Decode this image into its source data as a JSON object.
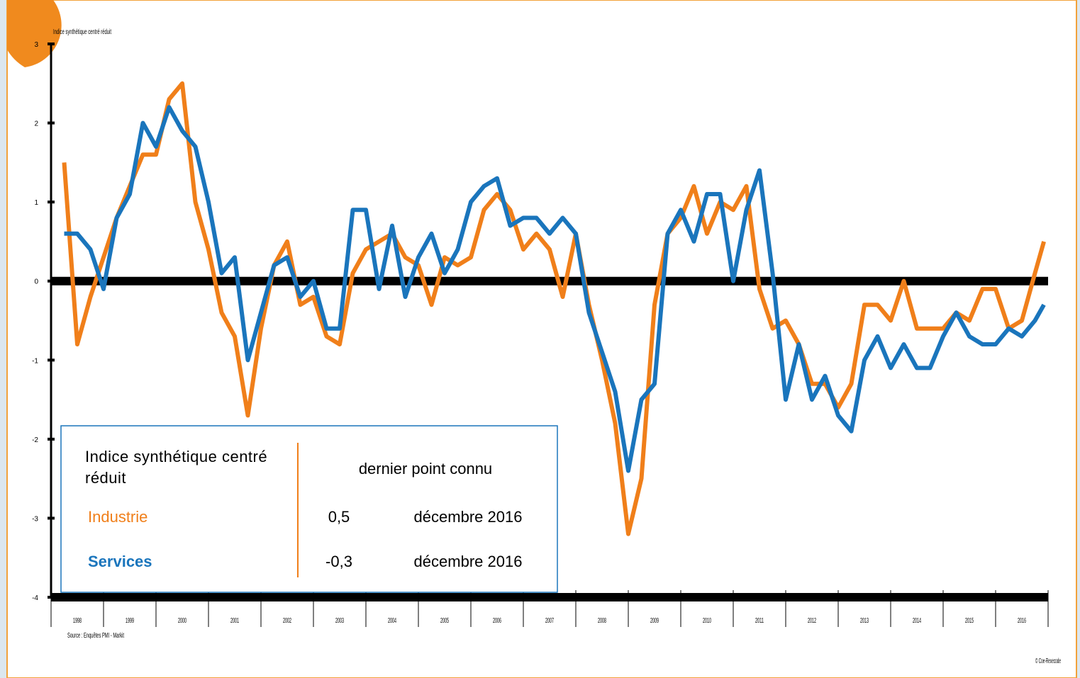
{
  "chart_data": {
    "type": "line",
    "y_axis_label": "Indice synthétique centré réduit",
    "source": "Source : Enquêtes PMI - Markit",
    "credit": "© Coe-Rexecode",
    "legend_header": "Indice synthétique centré réduit",
    "legend_column": "dernier point connu",
    "xlim": [
      1998,
      2017
    ],
    "ylim": [
      -4,
      3
    ],
    "yticks": [
      3,
      2,
      1,
      0,
      -1,
      -2,
      -3,
      -4
    ],
    "xticks": [
      {
        "value": 1998.5,
        "label": "1998"
      },
      {
        "value": 1999.5,
        "label": "1999"
      },
      {
        "value": 2000.5,
        "label": "2000"
      },
      {
        "value": 2001.5,
        "label": "2001"
      },
      {
        "value": 2002.5,
        "label": "2002"
      },
      {
        "value": 2003.5,
        "label": "2003"
      },
      {
        "value": 2004.5,
        "label": "2004"
      },
      {
        "value": 2005.5,
        "label": "2005"
      },
      {
        "value": 2006.5,
        "label": "2006"
      },
      {
        "value": 2007.5,
        "label": "2007"
      },
      {
        "value": 2008.5,
        "label": "2008"
      },
      {
        "value": 2009.5,
        "label": "2009"
      },
      {
        "value": 2010.5,
        "label": "2010"
      },
      {
        "value": 2011.5,
        "label": "2011"
      },
      {
        "value": 2012.5,
        "label": "2012"
      },
      {
        "value": 2013.5,
        "label": "2013"
      },
      {
        "value": 2014.5,
        "label": "2014"
      },
      {
        "value": 2015.5,
        "label": "2015"
      },
      {
        "value": 2016.5,
        "label": "2016"
      }
    ],
    "x": [
      1998.25,
      1998.5,
      1998.75,
      1999,
      1999.25,
      1999.5,
      1999.75,
      2000,
      2000.25,
      2000.5,
      2000.75,
      2001,
      2001.25,
      2001.5,
      2001.75,
      2002,
      2002.25,
      2002.5,
      2002.75,
      2003,
      2003.25,
      2003.5,
      2003.75,
      2004,
      2004.25,
      2004.5,
      2004.75,
      2005,
      2005.25,
      2005.5,
      2005.75,
      2006,
      2006.25,
      2006.5,
      2006.75,
      2007,
      2007.25,
      2007.5,
      2007.75,
      2008,
      2008.25,
      2008.5,
      2008.75,
      2009,
      2009.25,
      2009.5,
      2009.75,
      2010,
      2010.25,
      2010.5,
      2010.75,
      2011,
      2011.25,
      2011.5,
      2011.75,
      2012,
      2012.25,
      2012.5,
      2012.75,
      2013,
      2013.25,
      2013.5,
      2013.75,
      2014,
      2014.25,
      2014.5,
      2014.75,
      2015,
      2015.25,
      2015.5,
      2015.75,
      2016,
      2016.25,
      2016.5,
      2016.75,
      2016.92
    ],
    "series": [
      {
        "name": "Industrie",
        "color": "#f07f1a",
        "last_label": "0,5",
        "last_date": "décembre 2016",
        "values": [
          1.5,
          -0.8,
          -0.2,
          0.3,
          0.8,
          1.2,
          1.6,
          1.6,
          2.3,
          2.5,
          1.0,
          0.4,
          -0.4,
          -0.7,
          -1.7,
          -0.6,
          0.2,
          0.5,
          -0.3,
          -0.2,
          -0.7,
          -0.8,
          0.1,
          0.4,
          0.5,
          0.6,
          0.3,
          0.2,
          -0.3,
          0.3,
          0.2,
          0.3,
          0.9,
          1.1,
          0.9,
          0.4,
          0.6,
          0.4,
          -0.2,
          0.6,
          -0.3,
          -1.0,
          -1.8,
          -3.2,
          -2.5,
          -0.3,
          0.6,
          0.8,
          1.2,
          0.6,
          1.0,
          0.9,
          1.2,
          -0.1,
          -0.6,
          -0.5,
          -0.8,
          -1.3,
          -1.3,
          -1.6,
          -1.3,
          -0.3,
          -0.3,
          -0.5,
          0.0,
          -0.6,
          -0.6,
          -0.6,
          -0.4,
          -0.5,
          -0.1,
          -0.1,
          -0.6,
          -0.5,
          0.1,
          0.5
        ]
      },
      {
        "name": "Services",
        "color": "#1a75bc",
        "last_label": "-0,3",
        "last_date": "décembre 2016",
        "values": [
          0.6,
          0.6,
          0.4,
          -0.1,
          0.8,
          1.1,
          2.0,
          1.7,
          2.2,
          1.9,
          1.7,
          1.0,
          0.1,
          0.3,
          -1.0,
          -0.4,
          0.2,
          0.3,
          -0.2,
          0.0,
          -0.6,
          -0.6,
          0.9,
          0.9,
          -0.1,
          0.7,
          -0.2,
          0.3,
          0.6,
          0.1,
          0.4,
          1.0,
          1.2,
          1.3,
          0.7,
          0.8,
          0.8,
          0.6,
          0.8,
          0.6,
          -0.4,
          -0.9,
          -1.4,
          -2.4,
          -1.5,
          -1.3,
          0.6,
          0.9,
          0.5,
          1.1,
          1.1,
          0.0,
          0.9,
          1.4,
          0.1,
          -1.5,
          -0.8,
          -1.5,
          -1.2,
          -1.7,
          -1.9,
          -1.0,
          -0.7,
          -1.1,
          -0.8,
          -1.1,
          -1.1,
          -0.7,
          -0.4,
          -0.7,
          -0.8,
          -0.8,
          -0.6,
          -0.7,
          -0.5,
          -0.3
        ]
      }
    ]
  }
}
